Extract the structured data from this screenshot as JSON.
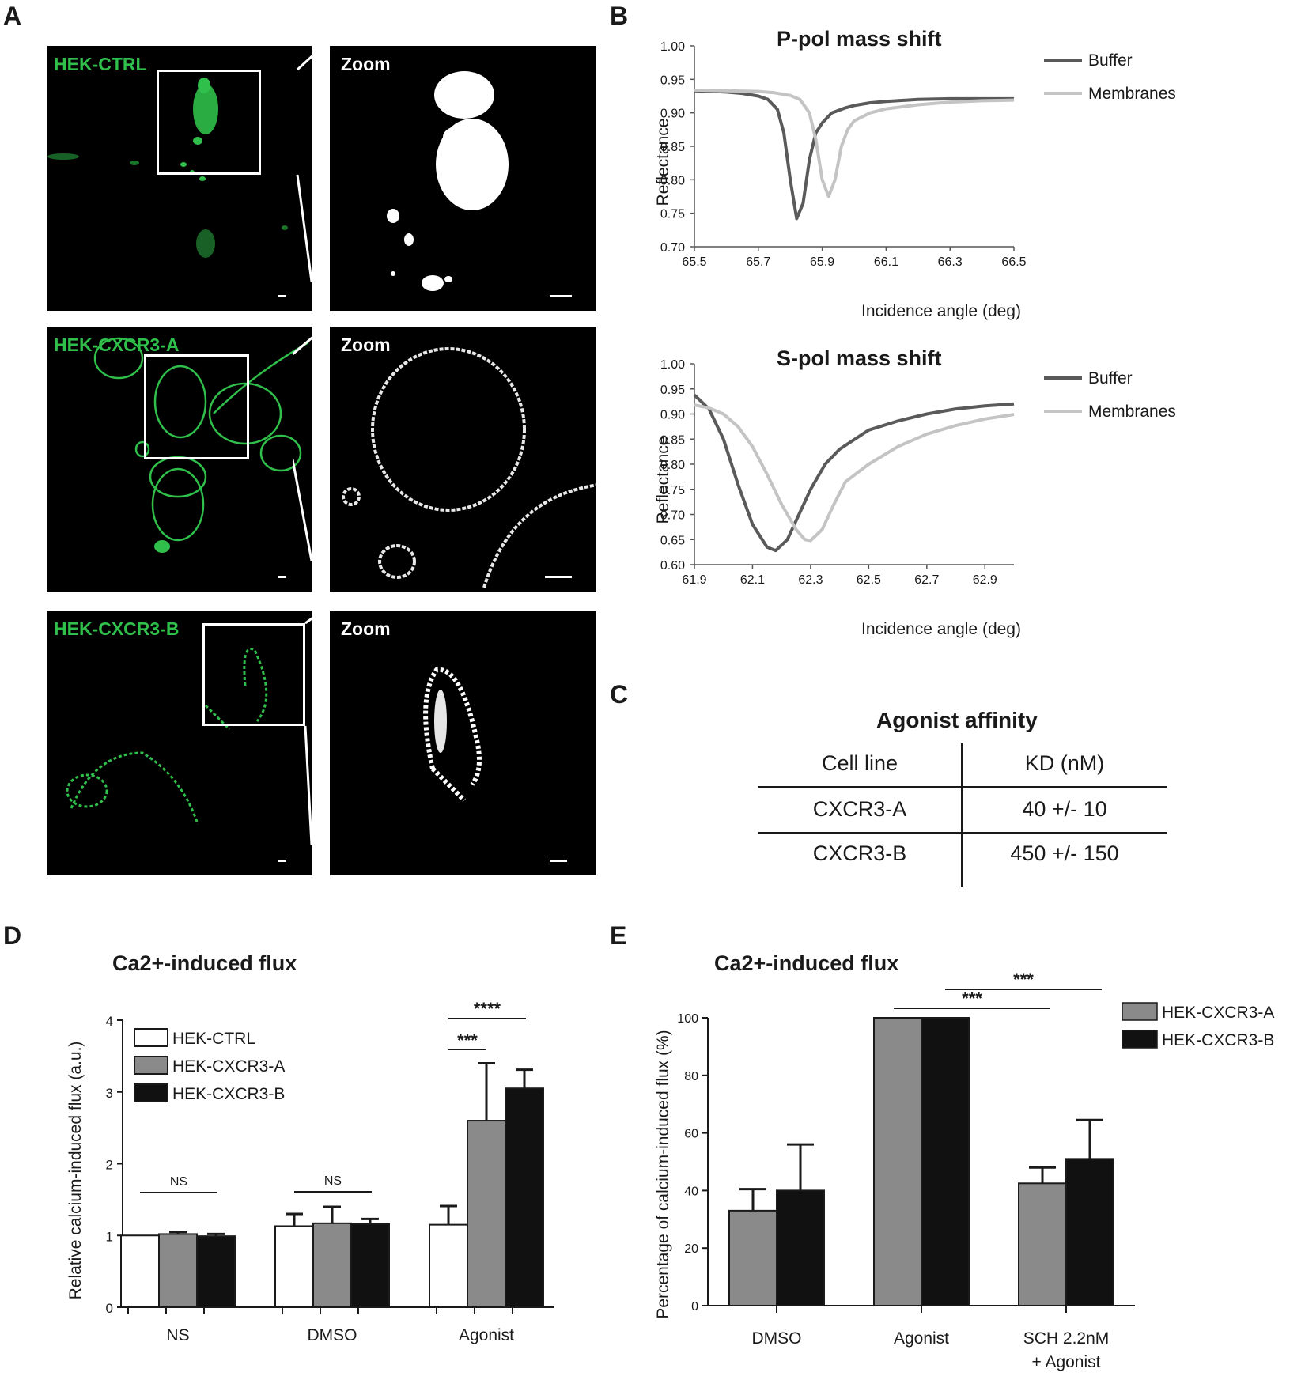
{
  "panels": {
    "A": "A",
    "B": "B",
    "C": "C",
    "D": "D",
    "E": "E"
  },
  "panel_a": {
    "rows": [
      {
        "label": "HEK-CTRL",
        "zoom_label": "Zoom"
      },
      {
        "label": "HEK-CXCR3-A",
        "zoom_label": "Zoom"
      },
      {
        "label": "HEK-CXCR3-B",
        "zoom_label": "Zoom"
      }
    ]
  },
  "colors": {
    "buffer": "#5a5a5a",
    "membranes": "#c4c4c4",
    "grey_bar": "#8a8a8a",
    "black_bar": "#111111",
    "white_bar": "#ffffff",
    "green_signal": "#2fbf4a"
  },
  "chart_data": [
    {
      "id": "p-pol",
      "type": "line",
      "title": "P-pol mass shift",
      "xlabel": "Incidence angle (deg)",
      "ylabel": "Reflectance",
      "xlim": [
        65.5,
        66.5
      ],
      "ylim": [
        0.7,
        1.0
      ],
      "xticks": [
        "65.5",
        "65.7",
        "65.9",
        "66.1",
        "66.3",
        "66.5"
      ],
      "yticks": [
        "0.70",
        "0.75",
        "0.80",
        "0.85",
        "0.90",
        "0.95",
        "1.00"
      ],
      "legend_position": "top-right",
      "grid": false,
      "series": [
        {
          "name": "Buffer",
          "x": [
            65.5,
            65.6,
            65.65,
            65.7,
            65.73,
            65.76,
            65.78,
            65.8,
            65.82,
            65.84,
            65.86,
            65.88,
            65.9,
            65.93,
            65.97,
            66.0,
            66.05,
            66.1,
            66.2,
            66.3,
            66.4,
            66.5
          ],
          "y": [
            0.933,
            0.931,
            0.929,
            0.925,
            0.92,
            0.905,
            0.87,
            0.8,
            0.742,
            0.765,
            0.83,
            0.87,
            0.885,
            0.9,
            0.907,
            0.911,
            0.915,
            0.917,
            0.92,
            0.921,
            0.921,
            0.921
          ]
        },
        {
          "name": "Membranes",
          "x": [
            65.5,
            65.6,
            65.7,
            65.75,
            65.8,
            65.83,
            65.86,
            65.88,
            65.9,
            65.92,
            65.94,
            65.96,
            65.98,
            66.0,
            66.05,
            66.1,
            66.2,
            66.3,
            66.4,
            66.5
          ],
          "y": [
            0.934,
            0.933,
            0.932,
            0.93,
            0.926,
            0.92,
            0.9,
            0.86,
            0.8,
            0.775,
            0.8,
            0.85,
            0.875,
            0.888,
            0.9,
            0.906,
            0.912,
            0.916,
            0.918,
            0.919
          ]
        }
      ]
    },
    {
      "id": "s-pol",
      "type": "line",
      "title": "S-pol mass shift",
      "xlabel": "Incidence angle (deg)",
      "ylabel": "Reflectance",
      "xlim": [
        61.9,
        63.0
      ],
      "ylim": [
        0.6,
        1.0
      ],
      "xticks": [
        "61.9",
        "62.1",
        "62.3",
        "62.5",
        "62.7",
        "62.9"
      ],
      "yticks": [
        "0.60",
        "0.65",
        "0.70",
        "0.75",
        "0.80",
        "0.85",
        "0.90",
        "0.95",
        "1.00"
      ],
      "legend_position": "top-right",
      "grid": false,
      "series": [
        {
          "name": "Buffer",
          "x": [
            61.9,
            61.95,
            62.0,
            62.05,
            62.1,
            62.15,
            62.18,
            62.22,
            62.26,
            62.3,
            62.35,
            62.4,
            62.5,
            62.6,
            62.7,
            62.8,
            62.9,
            63.0
          ],
          "y": [
            0.938,
            0.91,
            0.85,
            0.76,
            0.68,
            0.635,
            0.628,
            0.65,
            0.7,
            0.75,
            0.8,
            0.83,
            0.868,
            0.886,
            0.9,
            0.91,
            0.916,
            0.92
          ]
        },
        {
          "name": "Membranes",
          "x": [
            61.9,
            61.95,
            62.0,
            62.05,
            62.1,
            62.15,
            62.2,
            62.25,
            62.28,
            62.3,
            62.34,
            62.38,
            62.42,
            62.5,
            62.6,
            62.7,
            62.8,
            62.9,
            63.0
          ],
          "y": [
            0.918,
            0.912,
            0.9,
            0.875,
            0.835,
            0.78,
            0.72,
            0.67,
            0.65,
            0.648,
            0.67,
            0.72,
            0.765,
            0.8,
            0.835,
            0.86,
            0.877,
            0.89,
            0.899
          ]
        }
      ]
    },
    {
      "id": "affinity",
      "type": "table",
      "title": "Agonist affinity",
      "columns": [
        "Cell line",
        "KD (nM)"
      ],
      "rows": [
        [
          "CXCR3-A",
          "40 +/- 10"
        ],
        [
          "CXCR3-B",
          "450 +/- 150"
        ]
      ]
    },
    {
      "id": "flux-d",
      "type": "bar",
      "title": "Ca2+-induced flux",
      "ylabel": "Relative calcium-induced flux (a.u.)",
      "categories": [
        "NS",
        "DMSO",
        "Agonist"
      ],
      "ylim": [
        0,
        4
      ],
      "yticks": [
        "0",
        "1",
        "2",
        "3",
        "4"
      ],
      "legend_position": "top-left",
      "series": [
        {
          "name": "HEK-CTRL",
          "values": [
            1.0,
            1.13,
            1.15
          ],
          "errors": [
            0.0,
            0.17,
            0.26
          ]
        },
        {
          "name": "HEK-CXCR3-A",
          "values": [
            1.02,
            1.17,
            2.6
          ],
          "errors": [
            0.03,
            0.23,
            0.8
          ]
        },
        {
          "name": "HEK-CXCR3-B",
          "values": [
            0.99,
            1.16,
            3.05
          ],
          "errors": [
            0.03,
            0.07,
            0.26
          ]
        }
      ],
      "annotations": [
        {
          "text": "NS",
          "category": "NS"
        },
        {
          "text": "NS",
          "category": "DMSO"
        },
        {
          "text": "***",
          "category": "Agonist"
        },
        {
          "text": "****",
          "category": "Agonist"
        }
      ]
    },
    {
      "id": "flux-e",
      "type": "bar",
      "title": "Ca2+-induced flux",
      "ylabel": "Percentage of calcium-induced flux (%)",
      "categories": [
        "DMSO",
        "Agonist",
        "SCH 2.2nM\n+ Agonist"
      ],
      "category_lines": [
        [
          "DMSO"
        ],
        [
          "Agonist"
        ],
        [
          "SCH 2.2nM",
          "+ Agonist"
        ]
      ],
      "ylim": [
        0,
        100
      ],
      "yticks": [
        "0",
        "20",
        "40",
        "60",
        "80",
        "100"
      ],
      "legend_position": "top-right",
      "series": [
        {
          "name": "HEK-CXCR3-A",
          "values": [
            33,
            100,
            42.5
          ],
          "errors": [
            7.5,
            0,
            5.5
          ]
        },
        {
          "name": "HEK-CXCR3-B",
          "values": [
            40,
            100,
            51
          ],
          "errors": [
            16,
            0,
            13.5
          ]
        }
      ],
      "annotations": [
        {
          "text": "***"
        },
        {
          "text": "***"
        }
      ]
    }
  ]
}
